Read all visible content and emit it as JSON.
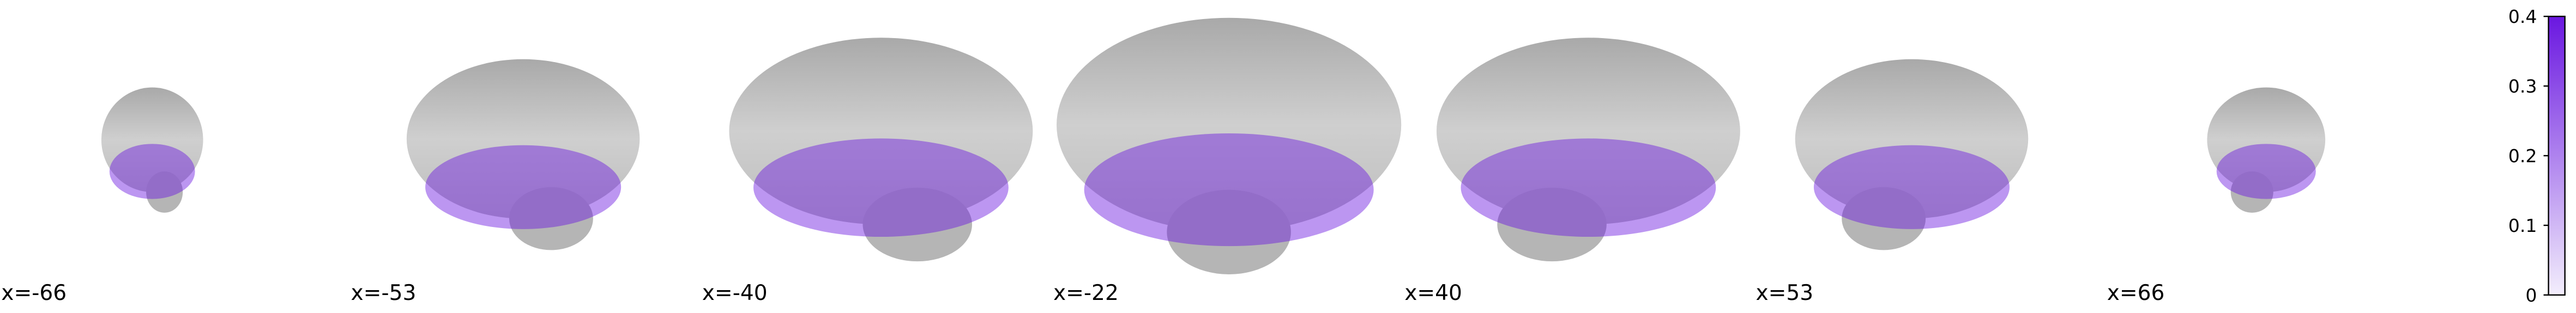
{
  "slices": [
    {
      "label": "x=-66"
    },
    {
      "label": "x=-53"
    },
    {
      "label": "x=-40"
    },
    {
      "label": "x=-22"
    },
    {
      "label": "x=40"
    },
    {
      "label": "x=53"
    },
    {
      "label": "x=66"
    }
  ],
  "colorbar": {
    "lim": [
      0,
      0.4
    ],
    "ticks": [
      0,
      0.1,
      0.2,
      0.3,
      0.4
    ],
    "colors": [
      "#f3eefc",
      "#6a17e0"
    ]
  }
}
